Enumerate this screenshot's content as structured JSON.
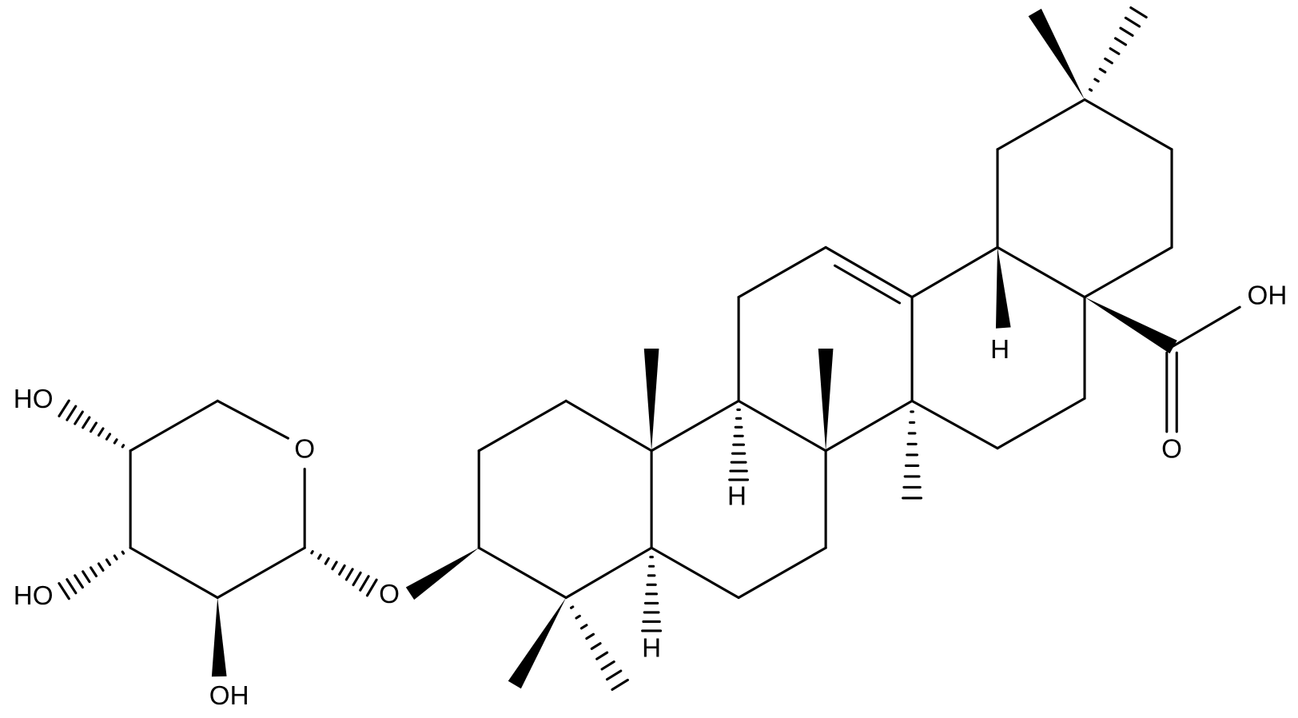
{
  "atoms": [
    {
      "label": "HO"
    },
    {
      "label": "O"
    },
    {
      "label": "HO"
    },
    {
      "label": "OH"
    },
    {
      "label": "O"
    },
    {
      "label": "H"
    },
    {
      "label": "H"
    },
    {
      "label": "H"
    },
    {
      "label": "OH"
    },
    {
      "label": "O"
    }
  ]
}
